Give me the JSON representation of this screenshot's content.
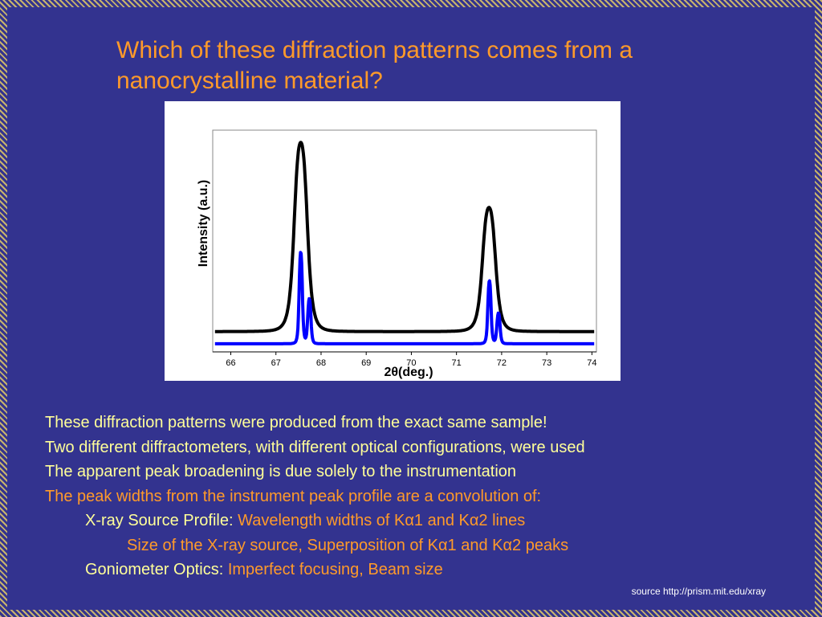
{
  "title": "Which of these diffraction patterns comes from a nanocrystalline material?",
  "chart_data": {
    "type": "line",
    "title": "",
    "xlabel": "2θ(deg.)",
    "ylabel": "Intensity (a.u.)",
    "xlim": [
      65.6,
      74.1
    ],
    "ylim": [
      -0.04,
      1.05
    ],
    "x_ticks": [
      66,
      67,
      68,
      69,
      70,
      71,
      72,
      73,
      74
    ],
    "grid": false,
    "legend": "none",
    "series": [
      {
        "color": "#000000",
        "baseline": 0.06,
        "peaks": [
          {
            "center": 67.55,
            "height": 0.93,
            "fwhm": 0.32
          },
          {
            "center": 71.72,
            "height": 0.61,
            "fwhm": 0.32
          }
        ]
      },
      {
        "color": "#0000ff",
        "baseline": 0.0,
        "peaks": [
          {
            "center": 67.55,
            "height": 0.45,
            "fwhm": 0.08
          },
          {
            "center": 67.74,
            "height": 0.22,
            "fwhm": 0.08
          },
          {
            "center": 71.73,
            "height": 0.31,
            "fwhm": 0.08
          },
          {
            "center": 71.93,
            "height": 0.15,
            "fwhm": 0.08
          }
        ]
      }
    ]
  },
  "body": {
    "line1": "These diffraction patterns were produced from the exact same sample!",
    "line2": "Two different diffractometers, with different optical configurations, were used",
    "line3": "The apparent peak broadening is due solely to the instrumentation",
    "line4": "The peak widths from the instrument peak profile are a convolution of:",
    "line5_label": "X-ray Source Profile: ",
    "line5_value": "Wavelength widths of Kα1 and Kα2 lines",
    "line6_value": "Size of the X-ray source, Superposition of Kα1 and Kα2 peaks",
    "line7_label": "Goniometer Optics: ",
    "line7_value": "Imperfect focusing, Beam size"
  },
  "source": "source http://prism.mit.edu/xray",
  "colors": {
    "background": "#33338f",
    "title": "#ff9a2a",
    "highlight": "#ff9a2a",
    "text": "#ffff99",
    "source": "#ffffff"
  }
}
